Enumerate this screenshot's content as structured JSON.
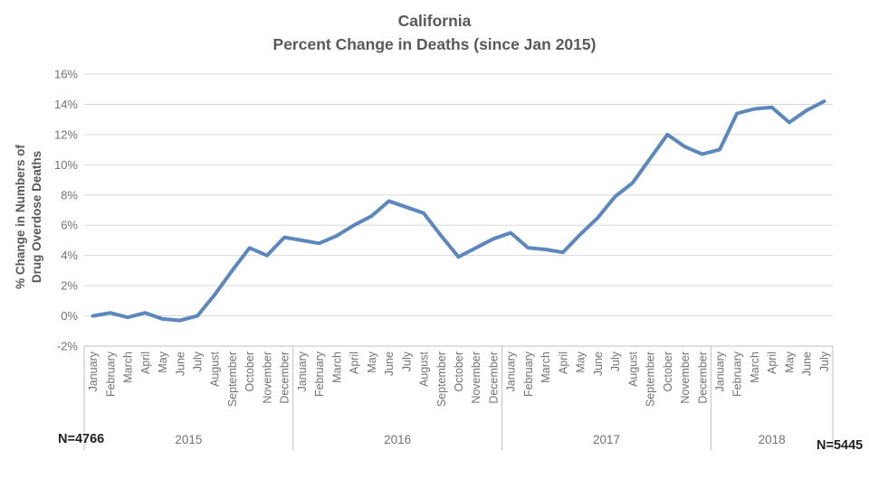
{
  "title": {
    "line1": "California",
    "line2": "Percent Change in Deaths (since Jan 2015)"
  },
  "y_axis": {
    "title_line1": "% Change in Numbers of",
    "title_line2": "Drug Overdose Deaths",
    "tick_labels": [
      "16%",
      "14%",
      "12%",
      "10%",
      "8%",
      "6%",
      "4%",
      "2%",
      "0%",
      "-2%"
    ]
  },
  "annotations": {
    "n_left": "N=4766",
    "n_right": "N=5445"
  },
  "colors": {
    "line": "#5B87BD",
    "grid": "#D9D9D9",
    "axis": "#BFBFBF",
    "tick_text": "#737373",
    "title_text": "#595959",
    "n_text": "#1F1F1F",
    "background": "#FFFFFF"
  },
  "chart_data": {
    "type": "line",
    "title": "California Percent Change in Deaths (since Jan 2015)",
    "xlabel": "",
    "ylabel": "% Change in Numbers of Drug Overdose Deaths",
    "ylim": [
      -2,
      16
    ],
    "y_tick_step": 2,
    "y_unit": "%",
    "grid": true,
    "legend": false,
    "x_groups": [
      {
        "year": "2015",
        "months": [
          "January",
          "February",
          "March",
          "April",
          "May",
          "June",
          "July",
          "August",
          "September",
          "October",
          "November",
          "December"
        ]
      },
      {
        "year": "2016",
        "months": [
          "January",
          "February",
          "March",
          "April",
          "May",
          "June",
          "July",
          "August",
          "September",
          "October",
          "November",
          "December"
        ]
      },
      {
        "year": "2017",
        "months": [
          "January",
          "February",
          "March",
          "April",
          "May",
          "June",
          "July",
          "August",
          "September",
          "October",
          "November",
          "December"
        ]
      },
      {
        "year": "2018",
        "months": [
          "January",
          "February",
          "March",
          "April",
          "May",
          "June",
          "July"
        ]
      }
    ],
    "series": [
      {
        "name": "% change in drug overdose deaths since Jan 2015",
        "values": [
          0.0,
          0.2,
          -0.1,
          0.2,
          -0.2,
          -0.3,
          0.0,
          1.4,
          3.0,
          4.5,
          4.0,
          5.2,
          5.0,
          4.8,
          5.3,
          6.0,
          6.6,
          7.6,
          7.2,
          6.8,
          5.3,
          3.9,
          4.5,
          5.1,
          5.5,
          4.5,
          4.4,
          4.2,
          5.4,
          6.5,
          7.9,
          8.8,
          10.4,
          12.0,
          11.2,
          10.7,
          11.0,
          13.4,
          13.7,
          13.8,
          12.8,
          13.6,
          14.2
        ]
      }
    ]
  }
}
